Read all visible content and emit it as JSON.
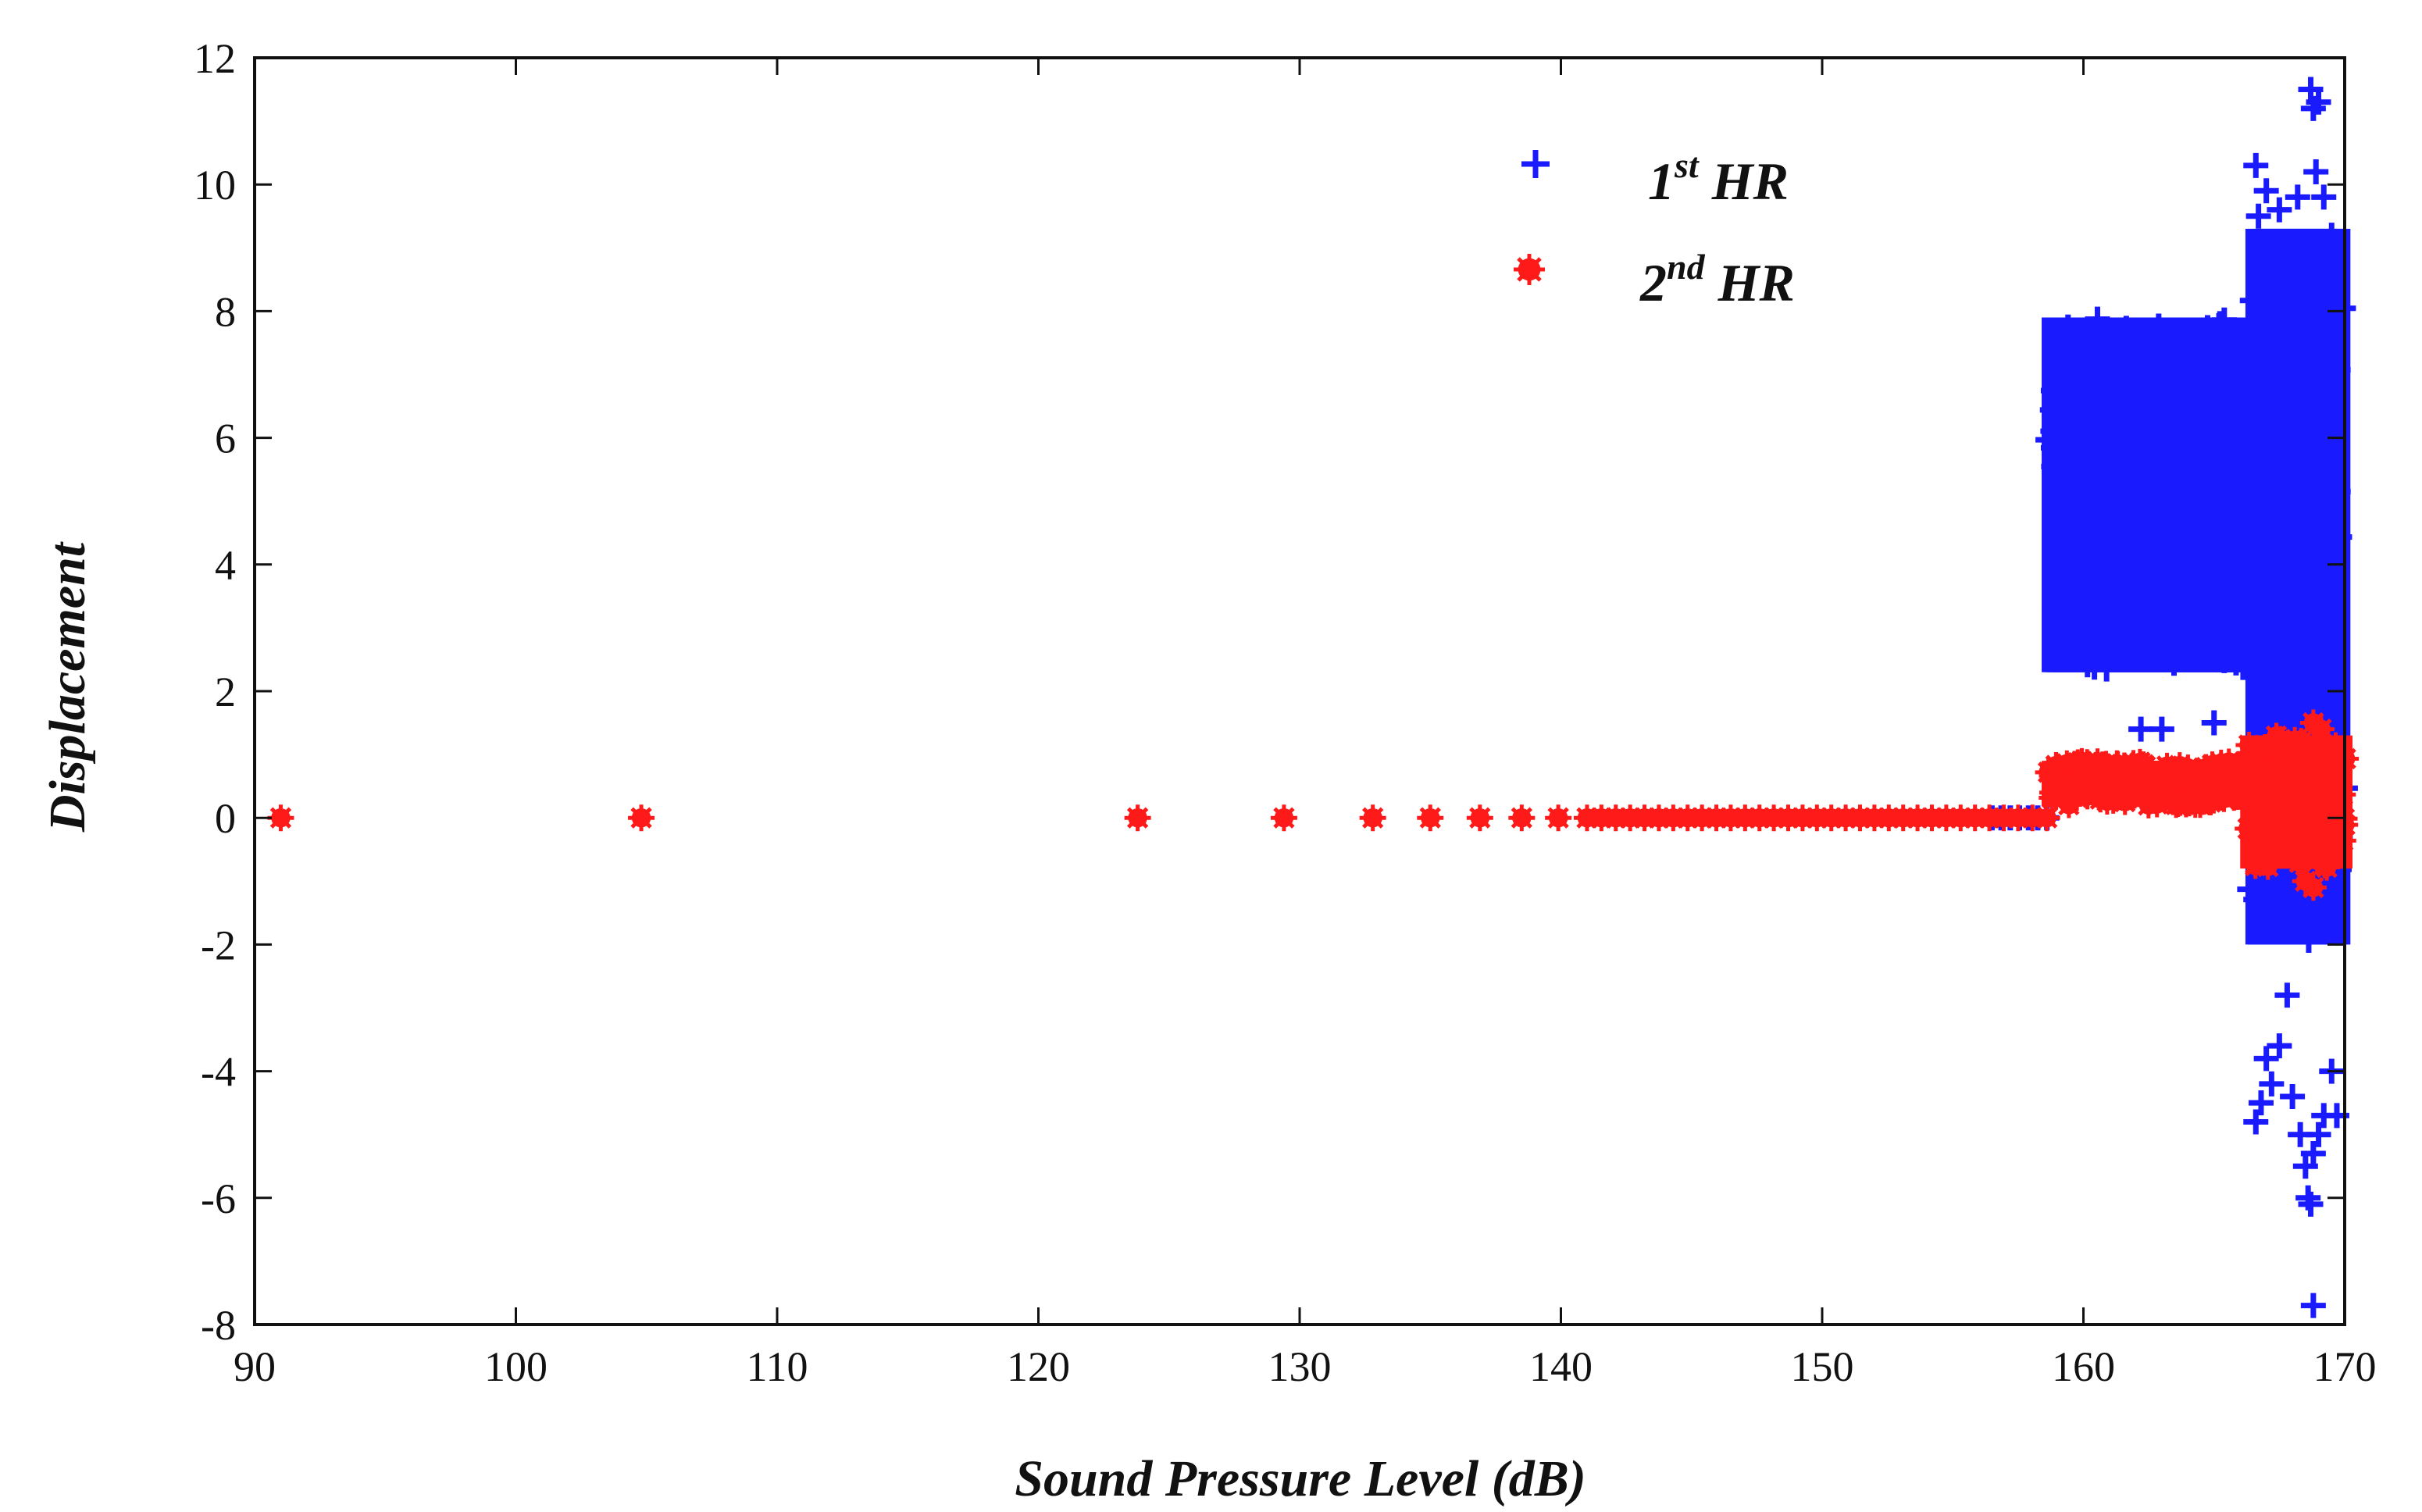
{
  "chart_data": {
    "type": "scatter",
    "title": "",
    "xlabel": "Sound Pressure Level (dB)",
    "ylabel": "Displacement",
    "xlim": [
      90,
      170
    ],
    "ylim": [
      -8,
      12
    ],
    "xticks": [
      90,
      100,
      110,
      120,
      130,
      140,
      150,
      160,
      170
    ],
    "yticks": [
      -8,
      -6,
      -4,
      -2,
      0,
      2,
      4,
      6,
      8,
      10,
      12
    ],
    "grid": false,
    "legend_position": "top-right",
    "series": [
      {
        "name": "1st HR",
        "label_base": "1",
        "label_sup": "st",
        "label_suffix": " HR",
        "color": "#1a1aff",
        "marker": "plus",
        "bands": [
          {
            "x": [
              156.5,
              158.7
            ],
            "y": [
              0,
              0
            ],
            "step": 0.35
          },
          {
            "x": [
              158.7,
              166.5
            ],
            "y": [
              2.3,
              7.9
            ],
            "step": 0.08
          },
          {
            "x": [
              166.5,
              170.0
            ],
            "y": [
              -2.0,
              9.3
            ],
            "step": 0.09
          }
        ],
        "points": [
          {
            "x": 162.2,
            "y": 1.4
          },
          {
            "x": 163.0,
            "y": 1.4
          },
          {
            "x": 165.0,
            "y": 1.5
          },
          {
            "x": 166.6,
            "y": 10.3
          },
          {
            "x": 166.7,
            "y": 9.5
          },
          {
            "x": 166.8,
            "y": 8.8
          },
          {
            "x": 167.0,
            "y": 9.9
          },
          {
            "x": 167.5,
            "y": 9.6
          },
          {
            "x": 168.2,
            "y": 9.8
          },
          {
            "x": 168.7,
            "y": 11.5
          },
          {
            "x": 168.8,
            "y": 11.2
          },
          {
            "x": 169.0,
            "y": 11.3
          },
          {
            "x": 168.9,
            "y": 10.2
          },
          {
            "x": 169.2,
            "y": 9.8
          },
          {
            "x": 169.5,
            "y": 9.2
          },
          {
            "x": 166.6,
            "y": -4.8
          },
          {
            "x": 166.8,
            "y": -4.5
          },
          {
            "x": 167.0,
            "y": -3.8
          },
          {
            "x": 167.2,
            "y": -4.2
          },
          {
            "x": 167.5,
            "y": -3.6
          },
          {
            "x": 167.8,
            "y": -2.8
          },
          {
            "x": 168.0,
            "y": -4.4
          },
          {
            "x": 168.3,
            "y": -5.0
          },
          {
            "x": 168.5,
            "y": -5.5
          },
          {
            "x": 168.6,
            "y": -6.0
          },
          {
            "x": 168.8,
            "y": -5.3
          },
          {
            "x": 169.0,
            "y": -5.0
          },
          {
            "x": 169.2,
            "y": -4.7
          },
          {
            "x": 169.5,
            "y": -4.0
          },
          {
            "x": 169.7,
            "y": -4.7
          },
          {
            "x": 168.7,
            "y": -6.1
          },
          {
            "x": 168.8,
            "y": -7.7
          }
        ]
      },
      {
        "name": "2nd HR",
        "label_base": "2",
        "label_sup": "nd",
        "label_suffix": " HR",
        "color": "#ff1a1a",
        "marker": "star",
        "bands": [
          {
            "x": [
              141.0,
              158.7
            ],
            "y": [
              0,
              0
            ],
            "step": 0.55
          },
          {
            "x": [
              158.7,
              166.3
            ],
            "y": [
              0.2,
              0.9
            ],
            "step": 0.1
          },
          {
            "x": [
              166.3,
              170.0
            ],
            "y": [
              -0.8,
              1.3
            ],
            "step": 0.1
          }
        ],
        "points": [
          {
            "x": 91.0,
            "y": 0
          },
          {
            "x": 104.8,
            "y": 0
          },
          {
            "x": 123.8,
            "y": 0
          },
          {
            "x": 129.4,
            "y": 0
          },
          {
            "x": 132.8,
            "y": 0
          },
          {
            "x": 135.0,
            "y": 0
          },
          {
            "x": 136.9,
            "y": 0
          },
          {
            "x": 138.5,
            "y": 0
          },
          {
            "x": 139.9,
            "y": 0
          },
          {
            "x": 168.8,
            "y": 1.5
          },
          {
            "x": 168.8,
            "y": -1.1
          },
          {
            "x": 168.5,
            "y": -1.0
          },
          {
            "x": 169.1,
            "y": 1.4
          }
        ]
      }
    ]
  }
}
